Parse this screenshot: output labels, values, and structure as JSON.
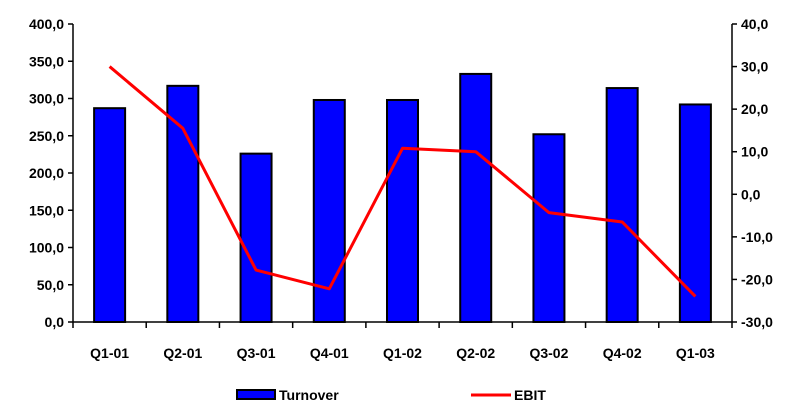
{
  "chart_data": {
    "type": "bar",
    "categories": [
      "Q1-01",
      "Q2-01",
      "Q3-01",
      "Q4-01",
      "Q1-02",
      "Q2-02",
      "Q3-02",
      "Q4-02",
      "Q1-03"
    ],
    "series": [
      {
        "name": "Turnover",
        "type": "bar",
        "axis": "left",
        "color": "#0000FF",
        "values": [
          287,
          317,
          226,
          298,
          298,
          333,
          252,
          314,
          292
        ]
      },
      {
        "name": "EBIT",
        "type": "line",
        "axis": "right",
        "color": "#FF0000",
        "values": [
          30.0,
          15.5,
          -17.8,
          -22.2,
          10.8,
          10.0,
          -4.3,
          -6.5,
          -24.0
        ]
      }
    ],
    "y_left": {
      "range": [
        0,
        400
      ],
      "step": 50,
      "tick_labels": [
        "0,0",
        "50,0",
        "100,0",
        "150,0",
        "200,0",
        "250,0",
        "300,0",
        "350,0",
        "400,0"
      ]
    },
    "y_right": {
      "range": [
        -30,
        40
      ],
      "step": 10,
      "tick_labels": [
        "-30,0",
        "-20,0",
        "-10,0",
        "0,0",
        "10,0",
        "20,0",
        "30,0",
        "40,0"
      ]
    },
    "grid": false,
    "legend": {
      "position": "bottom",
      "entries": [
        "Turnover",
        "EBIT"
      ]
    }
  }
}
